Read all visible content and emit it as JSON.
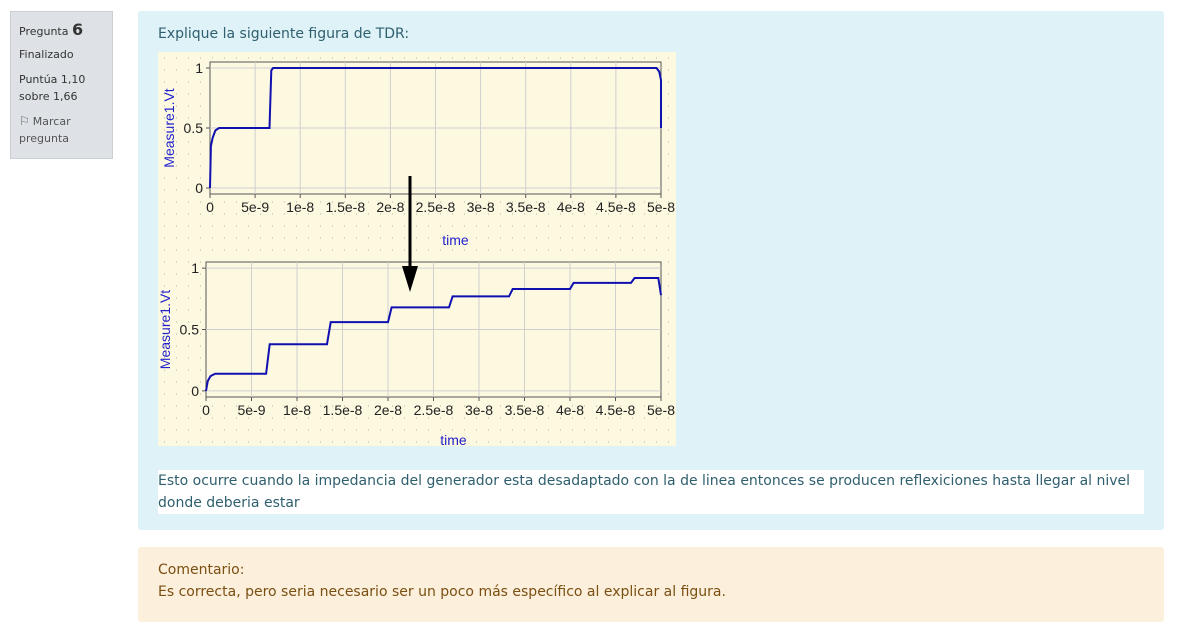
{
  "info": {
    "question_label": "Pregunta",
    "question_number": "6",
    "state": "Finalizado",
    "grade_line1": "Puntúa 1,10",
    "grade_line2": "sobre 1,66",
    "flag_line1": "Marcar",
    "flag_line2": "pregunta",
    "flag_icon": "flag-icon"
  },
  "question": {
    "text": "Explique la siguiente figura de TDR:"
  },
  "answer": {
    "text": "Esto ocurre cuando la impedancia del generador esta desadaptado con la de linea entonces se producen reflexiciones hasta llegar al nivel donde deberia estar"
  },
  "comment": {
    "title": "Comentario:",
    "text": "Es correcta, pero seria necesario ser un poco más específico al explicar al figura."
  },
  "chart_data": [
    {
      "type": "line",
      "xlabel": "time",
      "ylabel": "Measure1.Vt",
      "xlim": [
        0,
        5e-08
      ],
      "ylim": [
        -0.05,
        1.05
      ],
      "xticks": [
        "0",
        "5e-9",
        "1e-8",
        "1.5e-8",
        "2e-8",
        "2.5e-8",
        "3e-8",
        "3.5e-8",
        "4e-8",
        "4.5e-8",
        "5e-8"
      ],
      "yticks": [
        "0",
        "0.5",
        "1"
      ],
      "grid": true,
      "color": "#1010b0",
      "series": [
        {
          "x": [
            0,
            1e-10,
            3e-10,
            6e-10,
            1e-09,
            6.6e-09,
            6.8e-09,
            7e-09,
            4.95e-08,
            4.98e-08,
            5e-08,
            5e-08
          ],
          "y": [
            0,
            0.35,
            0.42,
            0.48,
            0.5,
            0.5,
            0.98,
            1.0,
            1.0,
            0.97,
            0.9,
            0.5
          ]
        }
      ]
    },
    {
      "type": "line",
      "xlabel": "time",
      "ylabel": "Measure1.Vt",
      "xlim": [
        0,
        5e-08
      ],
      "ylim": [
        -0.05,
        1.05
      ],
      "xticks": [
        "0",
        "5e-9",
        "1e-8",
        "1.5e-8",
        "2e-8",
        "2.5e-8",
        "3e-8",
        "3.5e-8",
        "4e-8",
        "4.5e-8",
        "5e-8"
      ],
      "yticks": [
        "0",
        "0.5",
        "1"
      ],
      "grid": true,
      "color": "#1010b0",
      "series": [
        {
          "x": [
            0,
            2e-10,
            5e-10,
            1e-09,
            6.6e-09,
            7e-09,
            1.33e-08,
            1.37e-08,
            2e-08,
            2.04e-08,
            2.67e-08,
            2.71e-08,
            3.33e-08,
            3.37e-08,
            4e-08,
            4.04e-08,
            4.67e-08,
            4.71e-08,
            4.97e-08,
            5e-08
          ],
          "y": [
            0,
            0.08,
            0.12,
            0.14,
            0.14,
            0.38,
            0.38,
            0.56,
            0.56,
            0.68,
            0.68,
            0.77,
            0.77,
            0.83,
            0.83,
            0.88,
            0.88,
            0.92,
            0.92,
            0.78
          ]
        }
      ]
    }
  ]
}
